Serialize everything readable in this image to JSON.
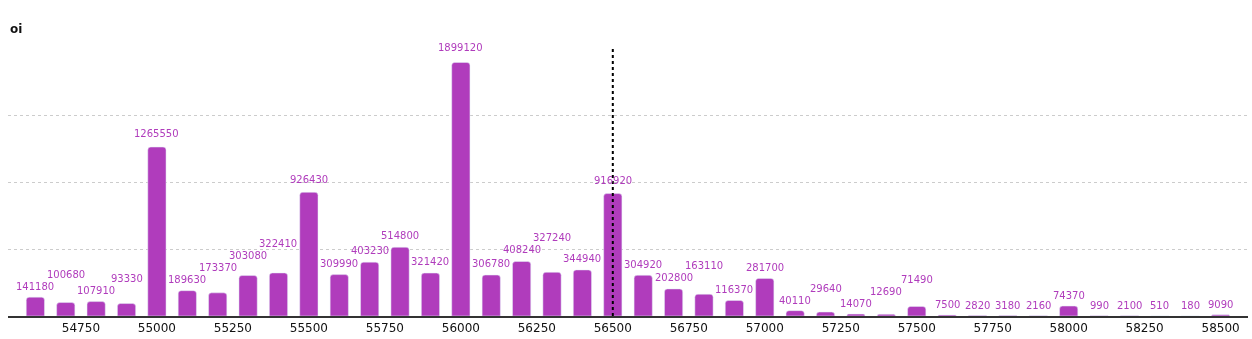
{
  "chart_data": {
    "type": "bar",
    "ylabel": "oi",
    "x": [
      54600,
      54700,
      54800,
      54900,
      55000,
      55100,
      55200,
      55300,
      55400,
      55500,
      55600,
      55700,
      55800,
      55900,
      56000,
      56100,
      56200,
      56300,
      56400,
      56500,
      56600,
      56700,
      56800,
      56900,
      57000,
      57100,
      57200,
      57300,
      57400,
      57500,
      57600,
      57700,
      57800,
      57900,
      58000,
      58100,
      58200,
      58300,
      58400,
      58500
    ],
    "values": [
      141180,
      100680,
      107910,
      93330,
      1265550,
      189630,
      173370,
      303080,
      322410,
      926430,
      309990,
      403230,
      514800,
      321420,
      1899120,
      306780,
      408240,
      327240,
      344940,
      916920,
      304920,
      202800,
      163110,
      116370,
      281700,
      40110,
      29640,
      14070,
      12690,
      71490,
      7500,
      2820,
      3180,
      2160,
      74370,
      990,
      2100,
      510,
      180,
      9090
    ],
    "color": "#b03cbc",
    "data_labels": true,
    "xlim": [
      54510,
      58590
    ],
    "xticks": [
      54750,
      55000,
      55250,
      55500,
      55750,
      56000,
      56250,
      56500,
      56750,
      57000,
      57250,
      57500,
      57750,
      58000,
      58250,
      58500
    ],
    "ylim": [
      0,
      2000000
    ],
    "yticks": [
      {
        "value": 0,
        "label": null
      },
      {
        "value": 500000,
        "label": null
      },
      {
        "value": 1000000,
        "label": null
      },
      {
        "value": 1500000,
        "label": null
      }
    ],
    "tick_labels": "x",
    "grid": "y",
    "legend": false,
    "ref_lines": [
      {
        "axis": "x",
        "value": 56500,
        "color": "#000000",
        "line_style": "dotted"
      }
    ]
  }
}
